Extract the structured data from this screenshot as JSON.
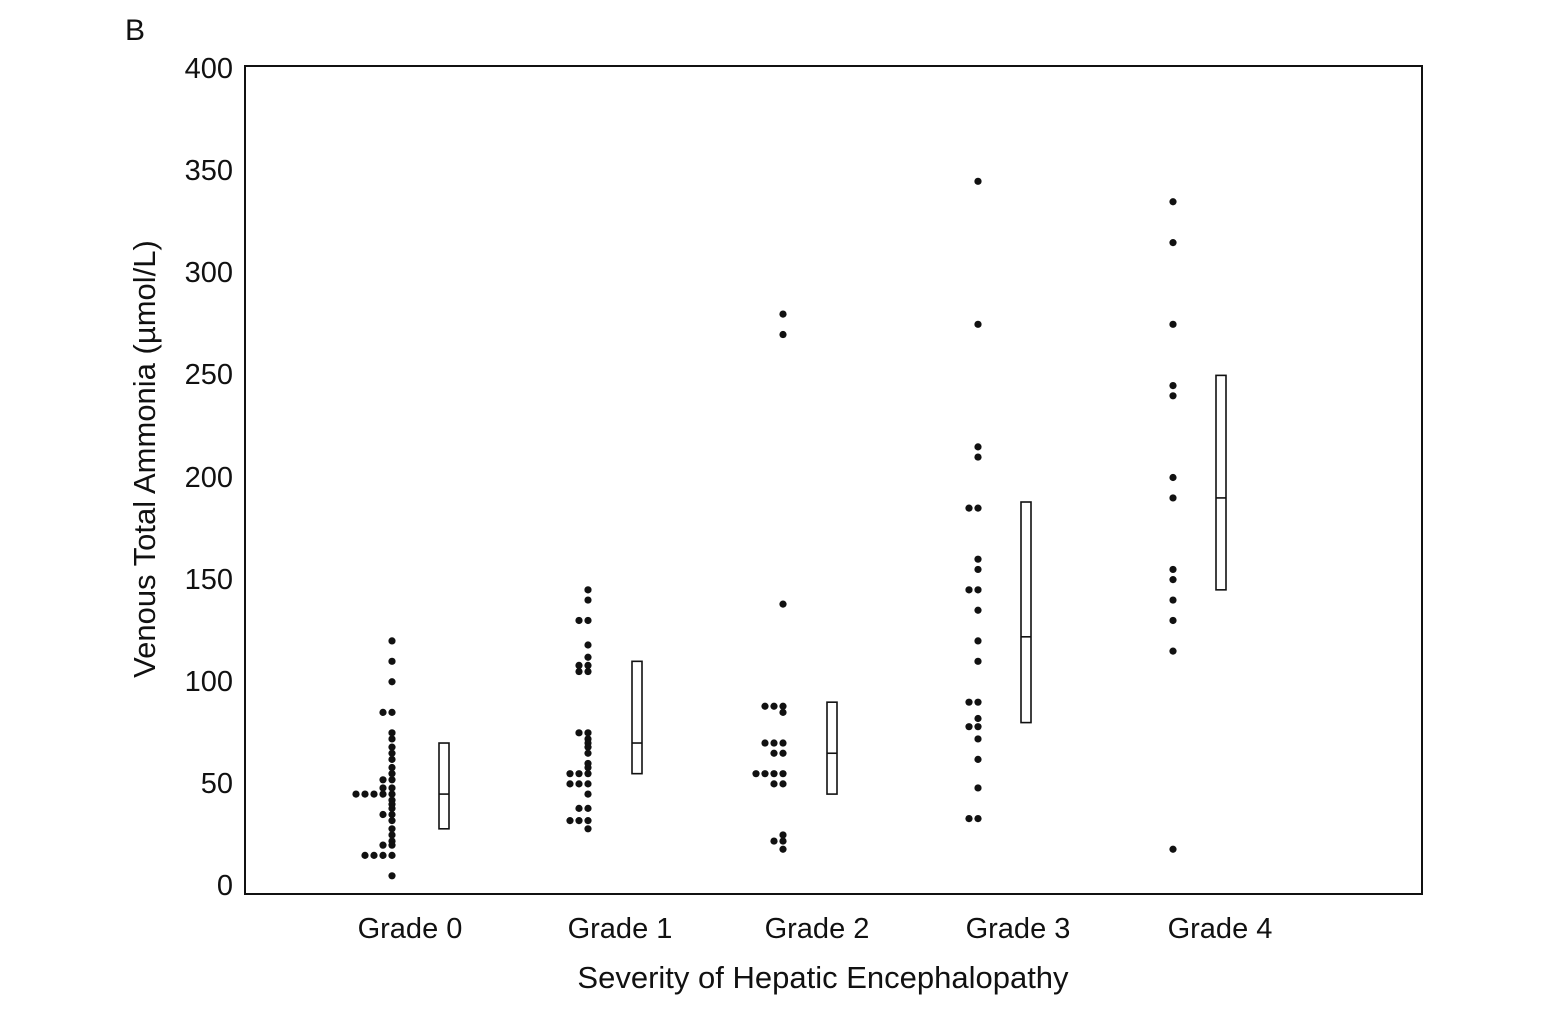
{
  "panel_label": "B",
  "chart_data": {
    "type": "scatter",
    "title": "",
    "xlabel": "Severity of Hepatic Encephalopathy",
    "ylabel": "Venous Total Ammonia (µmol/L)",
    "ylim": [
      0,
      400
    ],
    "yticks": [
      "0",
      "50",
      "100",
      "150",
      "200",
      "250",
      "300",
      "350",
      "400"
    ],
    "categories": [
      "Grade 0",
      "Grade 1",
      "Grade 2",
      "Grade 3",
      "Grade 4"
    ],
    "grid": false,
    "legend": "none",
    "groups": [
      {
        "category": "Grade 0",
        "values": [
          120,
          110,
          100,
          85,
          85,
          75,
          72,
          68,
          65,
          62,
          58,
          55,
          52,
          52,
          48,
          48,
          45,
          45,
          45,
          45,
          45,
          42,
          40,
          38,
          35,
          35,
          32,
          28,
          25,
          22,
          20,
          20,
          15,
          15,
          15,
          15,
          5
        ],
        "box": {
          "low": 28,
          "median": 45,
          "high": 70
        }
      },
      {
        "category": "Grade 1",
        "values": [
          145,
          140,
          130,
          130,
          118,
          112,
          108,
          108,
          105,
          105,
          75,
          75,
          72,
          70,
          68,
          65,
          60,
          58,
          55,
          55,
          55,
          50,
          50,
          50,
          45,
          38,
          38,
          32,
          32,
          32,
          28
        ],
        "box": {
          "low": 55,
          "median": 70,
          "high": 110
        }
      },
      {
        "category": "Grade 2",
        "values": [
          280,
          270,
          138,
          88,
          88,
          88,
          85,
          70,
          70,
          70,
          65,
          65,
          55,
          55,
          55,
          55,
          50,
          50,
          25,
          22,
          22,
          18
        ],
        "box": {
          "low": 45,
          "median": 65,
          "high": 90
        }
      },
      {
        "category": "Grade 3",
        "values": [
          345,
          275,
          215,
          210,
          185,
          185,
          160,
          155,
          145,
          145,
          135,
          120,
          110,
          90,
          90,
          82,
          78,
          78,
          72,
          62,
          48,
          33,
          33
        ],
        "box": {
          "low": 80,
          "median": 122,
          "high": 188
        }
      },
      {
        "category": "Grade 4",
        "values": [
          335,
          315,
          275,
          245,
          240,
          200,
          190,
          155,
          150,
          140,
          130,
          115,
          18
        ],
        "box": {
          "low": 145,
          "median": 190,
          "high": 250
        }
      }
    ]
  }
}
